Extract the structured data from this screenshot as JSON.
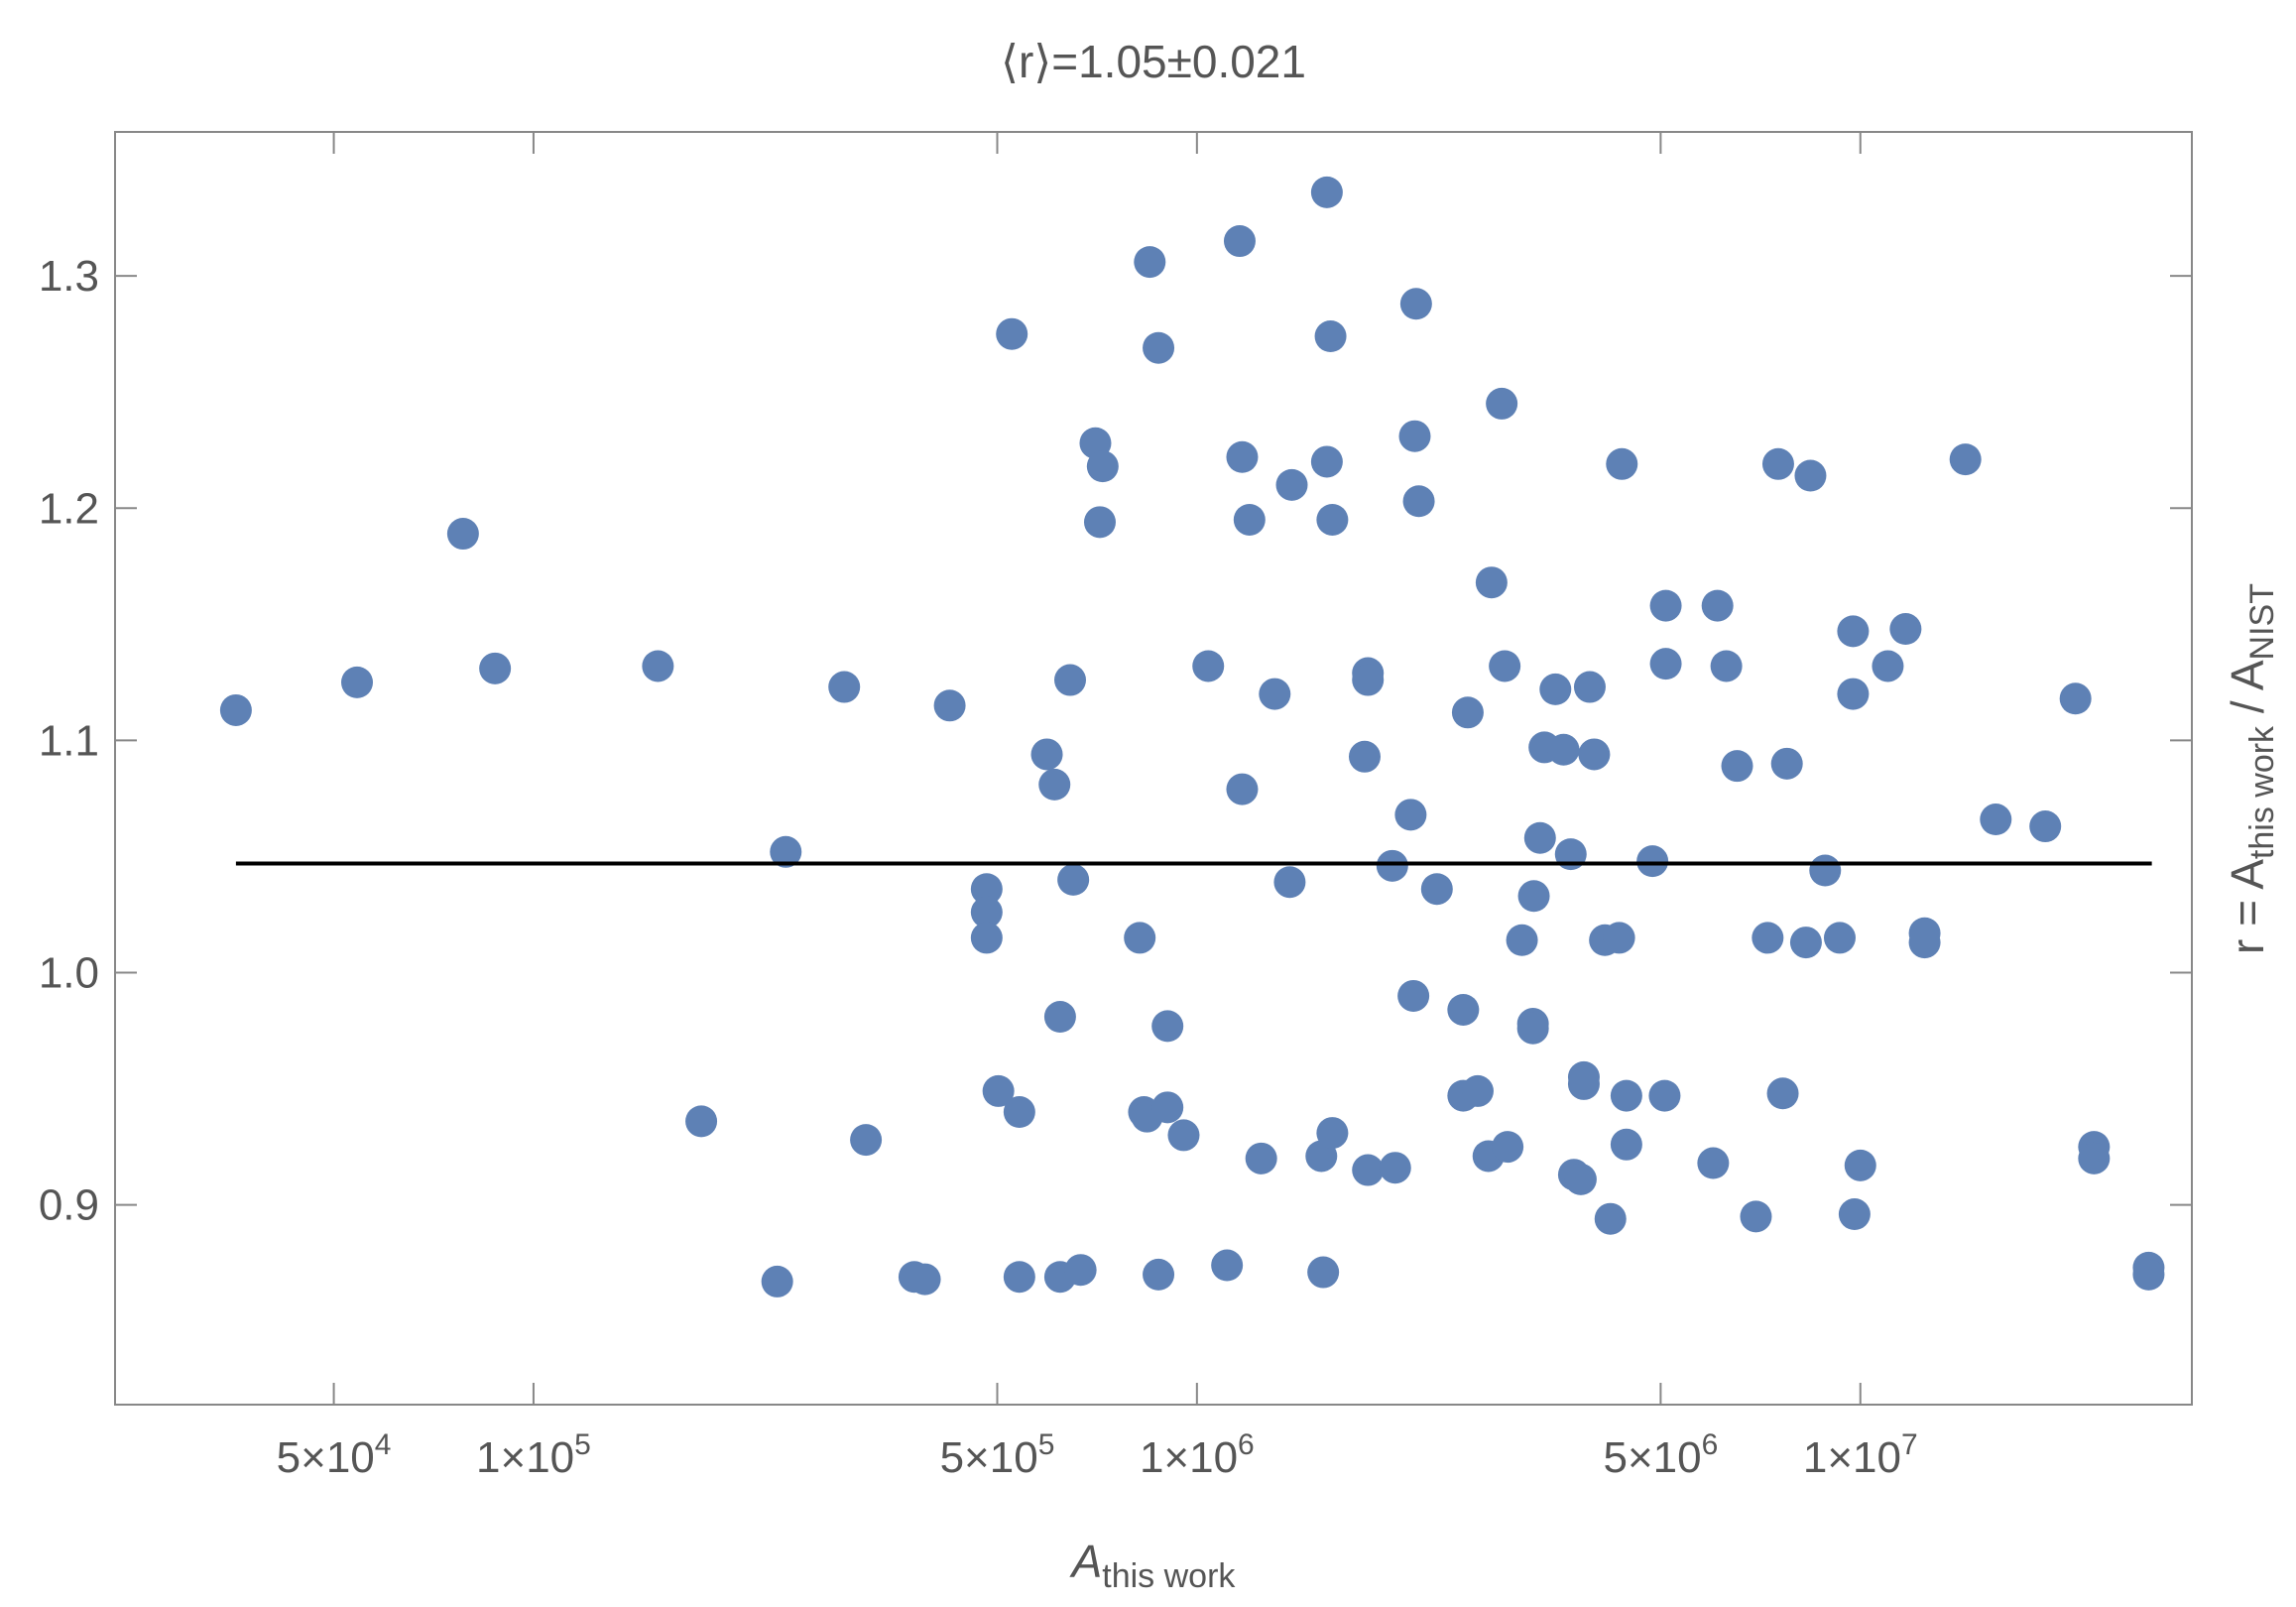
{
  "chart_data": {
    "type": "scatter",
    "title": "⟨r⟩=1.05±0.021",
    "xlabel": {
      "main": "A",
      "sub": "this work"
    },
    "ylabel_parts": [
      {
        "text": "r = A"
      },
      {
        "text": "this work",
        "sub": true
      },
      {
        "text": " / A"
      },
      {
        "text": "NIST",
        "sub": true
      }
    ],
    "xscale": "log",
    "xlim": [
      23400,
      31600000
    ],
    "ylim": [
      0.814,
      1.362
    ],
    "xticks": [
      {
        "value": 50000,
        "label": "5×10",
        "exponent": "4"
      },
      {
        "value": 100000,
        "label": "1×10",
        "exponent": "5"
      },
      {
        "value": 500000,
        "label": "5×10",
        "exponent": "5"
      },
      {
        "value": 1000000,
        "label": "1×10",
        "exponent": "6"
      },
      {
        "value": 5000000,
        "label": "5×10",
        "exponent": "6"
      },
      {
        "value": 10000000,
        "label": "1×10",
        "exponent": "7"
      }
    ],
    "yticks": [
      0.9,
      {
        "value": 1.0,
        "label": "1.0"
      },
      1.1,
      1.2,
      1.3
    ],
    "color": "#5e81b5",
    "reference_line": {
      "y": 1.047,
      "xrange": [
        35600,
        27500000
      ],
      "color": "#000000"
    },
    "x": [
      35600,
      54200,
      78300,
      87500,
      154000,
      179000,
      240000,
      233000,
      294000,
      317000,
      375000,
      389000,
      424000,
      482000,
      482000,
      482000,
      502000,
      526000,
      540000,
      540000,
      594000,
      610000,
      622000,
      622000,
      644000,
      651000,
      668000,
      703000,
      721000,
      714000,
      820000,
      832000,
      841000,
      849000,
      875000,
      875000,
      903000,
      903000,
      955000,
      1040000,
      1110000,
      1160000,
      1170000,
      1170000,
      1200000,
      1250000,
      1310000,
      1380000,
      1390000,
      1540000,
      1550000,
      1570000,
      1570000,
      1590000,
      1600000,
      1600000,
      1790000,
      1810000,
      1810000,
      1810000,
      1970000,
      1990000,
      2100000,
      2120000,
      2130000,
      2140000,
      2160000,
      2300000,
      2520000,
      2520000,
      2560000,
      2650000,
      2750000,
      2780000,
      2880000,
      2910000,
      2940000,
      3090000,
      3210000,
      3210000,
      3220000,
      3290000,
      3340000,
      3470000,
      3570000,
      3660000,
      3700000,
      3790000,
      3830000,
      3830000,
      3910000,
      3970000,
      4120000,
      4330000,
      4200000,
      4370000,
      4440000,
      4440000,
      4860000,
      5090000,
      5090000,
      5070000,
      6000000,
      6090000,
      6280000,
      6520000,
      6960000,
      7250000,
      7520000,
      7640000,
      7750000,
      8280000,
      8410000,
      8850000,
      9310000,
      9750000,
      9750000,
      9800000,
      10000000,
      11000000,
      11700000,
      12500000,
      12500000,
      14400000,
      16000000,
      19000000,
      21100000,
      22500000,
      22500000,
      27200000,
      27200000
    ],
    "y": [
      1.113,
      1.125,
      1.189,
      1.131,
      1.132,
      0.936,
      1.052,
      0.867,
      1.123,
      0.928,
      0.869,
      0.868,
      1.115,
      1.036,
      1.026,
      1.015,
      0.949,
      1.275,
      0.94,
      0.869,
      1.094,
      1.081,
      0.981,
      0.869,
      1.126,
      1.04,
      0.872,
      1.228,
      1.218,
      1.194,
      1.015,
      0.94,
      0.938,
      1.306,
      1.269,
      0.87,
      0.977,
      0.942,
      0.93,
      1.132,
      0.874,
      1.315,
      1.222,
      1.079,
      1.195,
      0.92,
      1.12,
      1.039,
      1.21,
      0.921,
      0.871,
      1.336,
      1.22,
      1.274,
      1.195,
      0.931,
      1.093,
      1.129,
      1.126,
      0.915,
      1.046,
      0.916,
      1.068,
      0.99,
      1.231,
      1.288,
      1.203,
      1.036,
      0.984,
      0.947,
      1.112,
      0.949,
      0.921,
      1.168,
      1.245,
      1.132,
      0.925,
      1.014,
      0.978,
      0.976,
      1.033,
      1.058,
      1.097,
      1.122,
      1.096,
      1.051,
      0.913,
      0.911,
      0.955,
      0.952,
      1.123,
      1.094,
      1.014,
      1.015,
      0.894,
      1.219,
      0.947,
      0.926,
      1.048,
      1.158,
      1.133,
      0.947,
      0.918,
      1.158,
      1.132,
      1.089,
      0.895,
      1.015,
      1.219,
      0.948,
      1.09,
      1.013,
      1.214,
      1.044,
      1.015,
      1.147,
      1.12,
      0.896,
      0.917,
      1.132,
      1.148,
      1.017,
      1.013,
      1.221,
      1.066,
      1.063,
      1.118,
      0.925,
      0.92,
      0.873,
      0.87
    ]
  }
}
